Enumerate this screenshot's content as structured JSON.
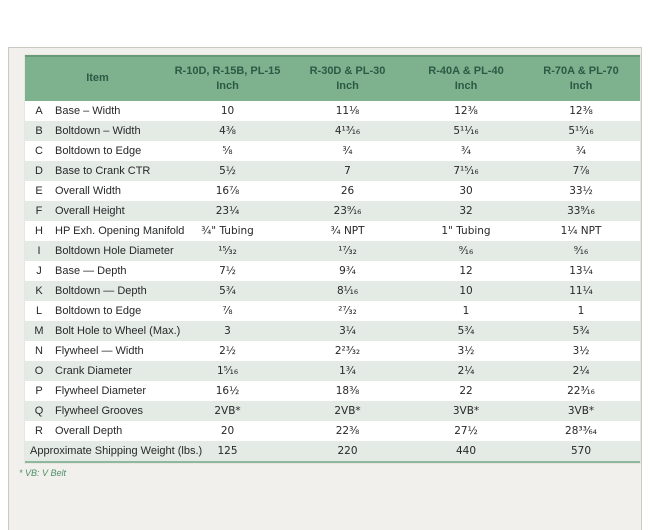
{
  "table": {
    "header": {
      "item_label": "Item",
      "columns": [
        {
          "line1": "R-10D, R-15B, PL-15",
          "line2": "Inch"
        },
        {
          "line1": "R-30D & PL-30",
          "line2": "Inch"
        },
        {
          "line1": "R-40A & PL-40",
          "line2": "Inch"
        },
        {
          "line1": "R-70A & PL-70",
          "line2": "Inch"
        }
      ]
    },
    "rows": [
      {
        "letter": "A",
        "item": "Base – Width",
        "values": [
          "10",
          "11⅛",
          "12⅜",
          "12⅜"
        ]
      },
      {
        "letter": "B",
        "item": "Boltdown – Width",
        "values": [
          "4⅜",
          "4¹³⁄₁₆",
          "5¹¹⁄₁₆",
          "5¹⁵⁄₁₆"
        ]
      },
      {
        "letter": "C",
        "item": "Boltdown to Edge",
        "values": [
          "⅝",
          "¾",
          "¾",
          "¾"
        ]
      },
      {
        "letter": "D",
        "item": "Base to Crank CTR",
        "values": [
          "5½",
          "7",
          "7¹⁵⁄₁₆",
          "7⅞"
        ]
      },
      {
        "letter": "E",
        "item": "Overall Width",
        "values": [
          "16⅞",
          "26",
          "30",
          "33½"
        ]
      },
      {
        "letter": "F",
        "item": "Overall Height",
        "values": [
          "23¼",
          "23⁹⁄₁₆",
          "32",
          "33⁹⁄₁₆"
        ]
      },
      {
        "letter": "H",
        "item": "HP Exh. Opening Manifold",
        "values": [
          "¾\" Tubing",
          "¾ NPT",
          "1\" Tubing",
          "1¼ NPT"
        ]
      },
      {
        "letter": "I",
        "item": "Boltdown Hole Diameter",
        "values": [
          "¹⁵⁄₃₂",
          "¹⁷⁄₃₂",
          "⁹⁄₁₆",
          "⁹⁄₁₆"
        ]
      },
      {
        "letter": "J",
        "item": "Base — Depth",
        "values": [
          "7½",
          "9¾",
          "12",
          "13¼"
        ]
      },
      {
        "letter": "K",
        "item": "Boltdown — Depth",
        "values": [
          "5¾",
          "8¹⁄₁₆",
          "10",
          "11¼"
        ]
      },
      {
        "letter": "L",
        "item": "Boltdown to Edge",
        "values": [
          "⅞",
          "²⁷⁄₃₂",
          "1",
          "1"
        ]
      },
      {
        "letter": "M",
        "item": "Bolt Hole to Wheel (Max.)",
        "values": [
          "3",
          "3¼",
          "5¾",
          "5¾"
        ]
      },
      {
        "letter": "N",
        "item": "Flywheel — Width",
        "values": [
          "2½",
          "2²³⁄₃₂",
          "3½",
          "3½"
        ]
      },
      {
        "letter": "O",
        "item": "Crank Diameter",
        "values": [
          "1⁵⁄₁₆",
          "1¾",
          "2¼",
          "2¼"
        ]
      },
      {
        "letter": "P",
        "item": "Flywheel Diameter",
        "values": [
          "16½",
          "18⅜",
          "22",
          "22³⁄₁₆"
        ]
      },
      {
        "letter": "Q",
        "item": "Flywheel Grooves",
        "values": [
          "2VB*",
          "2VB*",
          "3VB*",
          "3VB*"
        ]
      },
      {
        "letter": "R",
        "item": "Overall Depth",
        "values": [
          "20",
          "22⅜",
          "27½",
          "28³³⁄₆₄"
        ]
      },
      {
        "letter": "",
        "item": "Approximate Shipping Weight (lbs.)",
        "values": [
          "125",
          "220",
          "440",
          "570"
        ]
      }
    ]
  },
  "footnote": "* VB: V Belt",
  "colors": {
    "header_bg": "#7eb18d",
    "header_text": "#2c5a45",
    "stripe": "#e4ebe4",
    "panel_bg": "#f1f0ec",
    "footnote_color": "#4d8f66"
  }
}
